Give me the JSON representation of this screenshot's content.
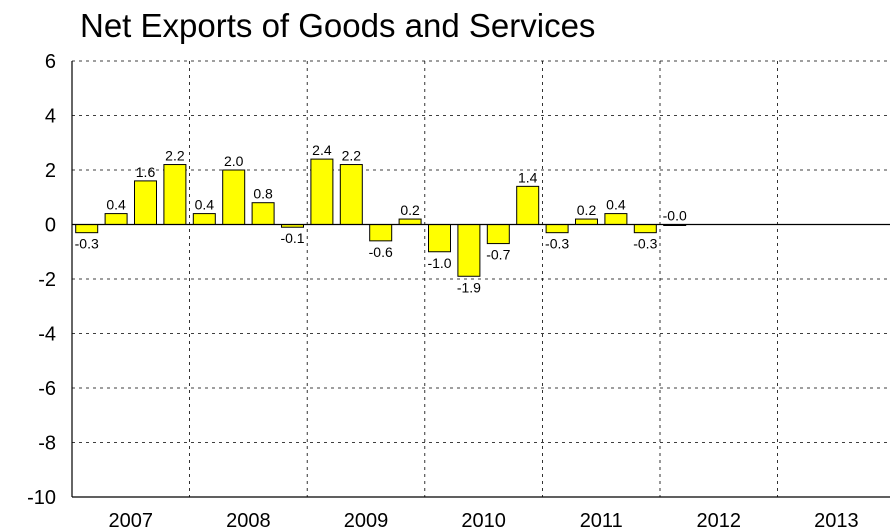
{
  "chart_data": {
    "type": "bar",
    "title": "Net Exports of Goods and Services",
    "xlabel": "",
    "ylabel": "",
    "ylim": [
      -10,
      6
    ],
    "yticks": [
      6,
      4,
      2,
      0,
      -2,
      -4,
      -6,
      -8,
      -10
    ],
    "year_labels": [
      "2007",
      "2008",
      "2009",
      "2010",
      "2011",
      "2012",
      "2013"
    ],
    "quarters_per_year": 4,
    "values": [
      -0.3,
      0.4,
      1.6,
      2.2,
      0.4,
      2.0,
      0.8,
      -0.1,
      2.4,
      2.2,
      -0.6,
      0.2,
      -1.0,
      -1.9,
      -0.7,
      1.4,
      -0.3,
      0.2,
      0.4,
      -0.3,
      -0.0
    ],
    "data_labels": [
      "-0.3",
      "0.4",
      "1.6",
      "2.2",
      "0.4",
      "2.0",
      "0.8",
      "-0.1",
      "2.4",
      "2.2",
      "-0.6",
      "0.2",
      "-1.0",
      "-1.9",
      "-0.7",
      "1.4",
      "-0.3",
      "0.2",
      "0.4",
      "-0.3",
      "-0.0"
    ],
    "bar_color": "#ffff00",
    "bar_border_color": "#000000",
    "grid": true,
    "grid_style": "dashed",
    "legend": "none"
  }
}
